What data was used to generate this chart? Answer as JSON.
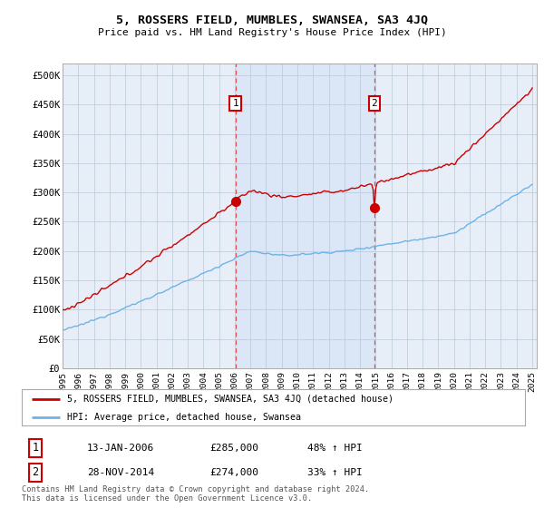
{
  "title": "5, ROSSERS FIELD, MUMBLES, SWANSEA, SA3 4JQ",
  "subtitle": "Price paid vs. HM Land Registry's House Price Index (HPI)",
  "yticks": [
    0,
    50000,
    100000,
    150000,
    200000,
    250000,
    300000,
    350000,
    400000,
    450000,
    500000
  ],
  "ytick_labels": [
    "£0",
    "£50K",
    "£100K",
    "£150K",
    "£200K",
    "£250K",
    "£300K",
    "£350K",
    "£400K",
    "£450K",
    "£500K"
  ],
  "xtick_years": [
    1995,
    1996,
    1997,
    1998,
    1999,
    2000,
    2001,
    2002,
    2003,
    2004,
    2005,
    2006,
    2007,
    2008,
    2009,
    2010,
    2011,
    2012,
    2013,
    2014,
    2015,
    2016,
    2017,
    2018,
    2019,
    2020,
    2021,
    2022,
    2023,
    2024,
    2025
  ],
  "hpi_color": "#6cb4e8",
  "price_color": "#cc0000",
  "sale1_x": 2006.04,
  "sale1_y": 285000,
  "sale2_x": 2014.91,
  "sale2_y": 274000,
  "vline_color": "#e05050",
  "shade_color": "#ccddf5",
  "legend_line1": "5, ROSSERS FIELD, MUMBLES, SWANSEA, SA3 4JQ (detached house)",
  "legend_line2": "HPI: Average price, detached house, Swansea",
  "table_row1": [
    "1",
    "13-JAN-2006",
    "£285,000",
    "48% ↑ HPI"
  ],
  "table_row2": [
    "2",
    "28-NOV-2014",
    "£274,000",
    "33% ↑ HPI"
  ],
  "footer": "Contains HM Land Registry data © Crown copyright and database right 2024.\nThis data is licensed under the Open Government Licence v3.0.",
  "plot_bg_color": "#e8eef8"
}
